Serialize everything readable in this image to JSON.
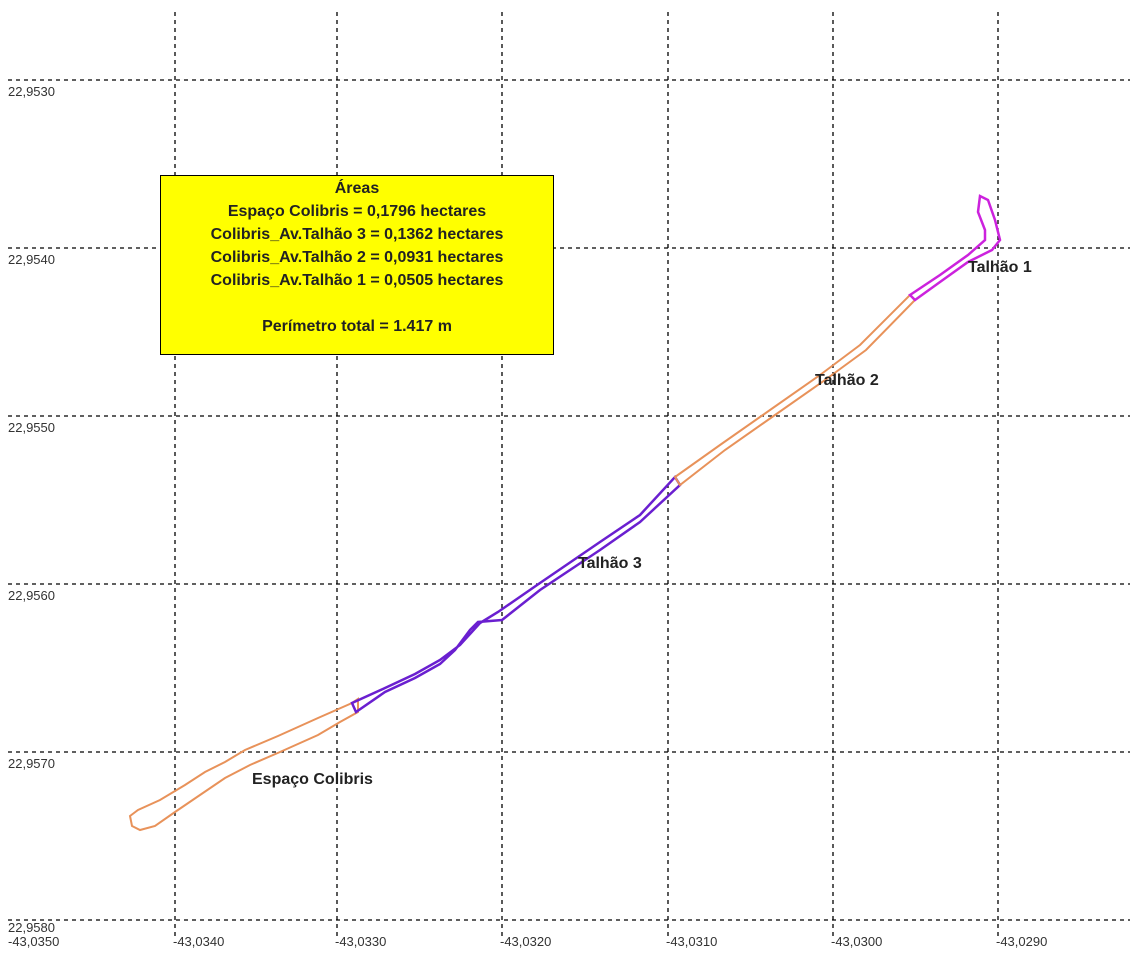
{
  "map": {
    "x_ticks": [
      "-43,0350",
      "-43,0340",
      "-43,0330",
      "-43,0320",
      "-43,0310",
      "-43,0300",
      "-43,0290"
    ],
    "y_ticks": [
      "22,9530",
      "22,9540",
      "22,9550",
      "22,9560",
      "22,9570",
      "22,9580"
    ],
    "colors": {
      "espaco_colibris": "#e8925a",
      "talhao_2": "#e8925a",
      "talhao_3": "#6a1fd0",
      "talhao_1": "#cc22dd",
      "box_background": "#ffff00",
      "grid": "#000000"
    }
  },
  "info_box": {
    "title": "Áreas",
    "lines": [
      "Espaço Colibris = 0,1796 hectares",
      "Colibris_Av.Talhão 3 = 0,1362 hectares",
      "Colibris_Av.Talhão 2 = 0,0931 hectares",
      "Colibris_Av.Talhão 1 = 0,0505 hectares"
    ],
    "perimeter": "Perímetro total = 1.417 m"
  },
  "labels": {
    "talhao_1": "Talhão 1",
    "talhao_2": "Talhão 2",
    "talhao_3": "Talhão 3",
    "espaco_colibris": "Espaço Colibris"
  }
}
